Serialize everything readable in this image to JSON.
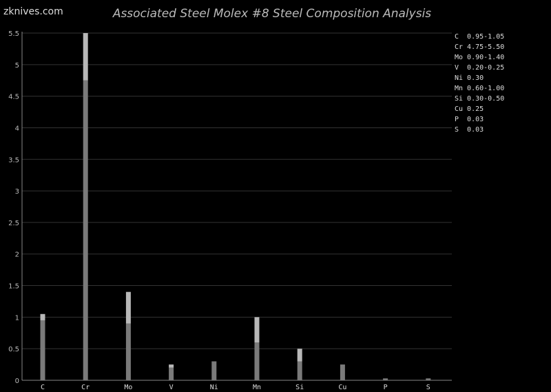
{
  "site_label": "zknives.com",
  "chart_data": {
    "type": "bar",
    "title": "Associated Steel Molex #8 Steel Composition Analysis",
    "categories": [
      "C",
      "Cr",
      "Mo",
      "V",
      "Ni",
      "Mn",
      "Si",
      "Cu",
      "P",
      "S"
    ],
    "series": [
      {
        "min": [
          0.95,
          4.75,
          0.9,
          0.2,
          0.3,
          0.6,
          0.3,
          0.25,
          0.03,
          0.03
        ],
        "max": [
          1.05,
          5.5,
          1.4,
          0.25,
          0.3,
          1.0,
          0.5,
          0.25,
          0.03,
          0.03
        ]
      }
    ],
    "ylim": [
      0,
      5.5
    ],
    "yticks": [
      "0",
      "0.5",
      "1",
      "1.5",
      "2",
      "2.5",
      "3",
      "3.5",
      "4",
      "4.5",
      "5",
      "5.5"
    ],
    "grid": true,
    "legend_placement": "top-right",
    "legend": [
      "C  0.95-1.05",
      "Cr 4.75-5.50",
      "Mo 0.90-1.40",
      "V  0.20-0.25",
      "Ni 0.30",
      "Mn 0.60-1.00",
      "Si 0.30-0.50",
      "Cu 0.25",
      "P  0.03",
      "S  0.03"
    ],
    "colors": {
      "min_bar": "#7a7a7a",
      "range_bar": "#b8b8b8",
      "grid": "#333333",
      "axis": "#888888"
    }
  }
}
